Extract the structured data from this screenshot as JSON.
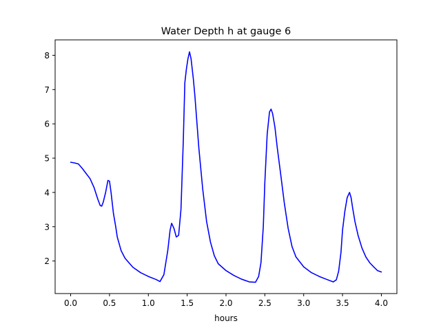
{
  "chart_data": {
    "type": "line",
    "title": "Water Depth h at gauge 6",
    "xlabel": "hours",
    "ylabel": "",
    "xlim": [
      -0.2,
      4.2
    ],
    "ylim": [
      1.05,
      8.45
    ],
    "x_ticks": [
      0.0,
      0.5,
      1.0,
      1.5,
      2.0,
      2.5,
      3.0,
      3.5,
      4.0
    ],
    "x_tick_labels": [
      "0.0",
      "0.5",
      "1.0",
      "1.5",
      "2.0",
      "2.5",
      "3.0",
      "3.5",
      "4.0"
    ],
    "y_ticks": [
      2,
      3,
      4,
      5,
      6,
      7,
      8
    ],
    "y_tick_labels": [
      "2",
      "3",
      "4",
      "5",
      "6",
      "7",
      "8"
    ],
    "grid": false,
    "series": [
      {
        "color": "#0000ff",
        "x": [
          0.0,
          0.05,
          0.1,
          0.15,
          0.2,
          0.25,
          0.3,
          0.35,
          0.38,
          0.4,
          0.42,
          0.45,
          0.48,
          0.5,
          0.52,
          0.55,
          0.58,
          0.6,
          0.65,
          0.7,
          0.75,
          0.8,
          0.9,
          1.0,
          1.1,
          1.15,
          1.2,
          1.25,
          1.28,
          1.3,
          1.33,
          1.36,
          1.39,
          1.42,
          1.45,
          1.47,
          1.49,
          1.51,
          1.53,
          1.55,
          1.58,
          1.6,
          1.62,
          1.65,
          1.7,
          1.75,
          1.8,
          1.85,
          1.9,
          2.0,
          2.1,
          2.2,
          2.3,
          2.38,
          2.42,
          2.45,
          2.48,
          2.5,
          2.53,
          2.56,
          2.58,
          2.6,
          2.63,
          2.66,
          2.7,
          2.75,
          2.8,
          2.85,
          2.9,
          3.0,
          3.1,
          3.2,
          3.3,
          3.38,
          3.42,
          3.45,
          3.48,
          3.5,
          3.53,
          3.56,
          3.59,
          3.61,
          3.63,
          3.66,
          3.7,
          3.75,
          3.8,
          3.85,
          3.9,
          3.95,
          4.0
        ],
        "y": [
          4.88,
          4.86,
          4.83,
          4.7,
          4.55,
          4.4,
          4.15,
          3.8,
          3.62,
          3.6,
          3.72,
          4.0,
          4.35,
          4.33,
          4.0,
          3.4,
          3.0,
          2.7,
          2.3,
          2.08,
          1.95,
          1.82,
          1.66,
          1.55,
          1.46,
          1.4,
          1.6,
          2.3,
          2.9,
          3.1,
          2.95,
          2.7,
          2.75,
          3.5,
          5.5,
          7.2,
          7.6,
          7.9,
          8.1,
          7.9,
          7.3,
          6.8,
          6.2,
          5.3,
          4.1,
          3.15,
          2.55,
          2.15,
          1.92,
          1.72,
          1.58,
          1.47,
          1.39,
          1.38,
          1.55,
          1.95,
          3.0,
          4.3,
          5.7,
          6.35,
          6.43,
          6.3,
          5.9,
          5.3,
          4.6,
          3.7,
          2.95,
          2.42,
          2.12,
          1.83,
          1.66,
          1.55,
          1.46,
          1.39,
          1.45,
          1.7,
          2.25,
          2.9,
          3.45,
          3.85,
          4.0,
          3.85,
          3.55,
          3.15,
          2.75,
          2.38,
          2.12,
          1.95,
          1.83,
          1.72,
          1.68
        ]
      }
    ]
  }
}
